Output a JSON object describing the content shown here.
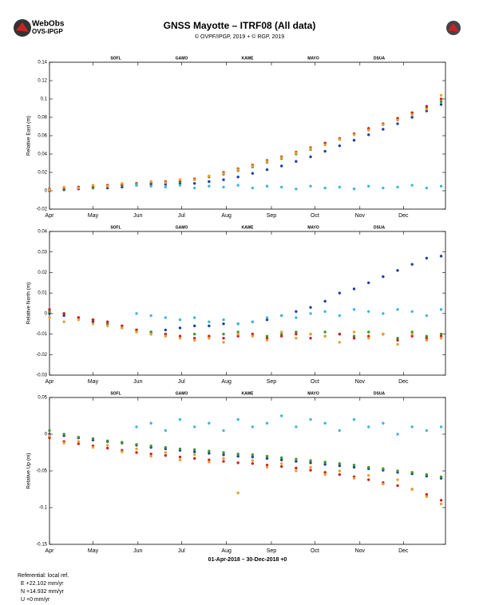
{
  "header": {
    "logo_title": "WebObs",
    "logo_subtitle": "OVS-IPGP",
    "title": "GNSS Mayotte – ITRF08 (All data)",
    "subtitle": "© OVPF/IPGP, 2019 + © RGP, 2019"
  },
  "referential": [
    "Referential: local ref.",
    "E +22.102 mm/yr",
    "N +14.932 mm/yr",
    "U +0 mm/yr"
  ],
  "chart_data": [
    {
      "type": "scatter",
      "ylabel": "Relative East (m)",
      "xlim": [
        0,
        273
      ],
      "ylim": [
        -0.02,
        0.14
      ],
      "xticks": [
        {
          "value": 0,
          "label": "Apr"
        },
        {
          "value": 30,
          "label": "May"
        },
        {
          "value": 61,
          "label": "Jun"
        },
        {
          "value": 91,
          "label": "Jul"
        },
        {
          "value": 122,
          "label": "Aug"
        },
        {
          "value": 153,
          "label": "Sep"
        },
        {
          "value": 183,
          "label": "Oct"
        },
        {
          "value": 214,
          "label": "Nov"
        },
        {
          "value": 244,
          "label": "Dec"
        }
      ],
      "yticks": [
        -0.02,
        0,
        0.02,
        0.04,
        0.06,
        0.08,
        0.1,
        0.12,
        0.14
      ],
      "x": [
        0,
        10,
        20,
        30,
        40,
        50,
        60,
        70,
        80,
        90,
        100,
        110,
        120,
        130,
        140,
        150,
        160,
        170,
        180,
        190,
        200,
        210,
        220,
        230,
        240,
        250,
        260,
        270
      ],
      "series": [
        {
          "name": "SOFL",
          "color": "#1f3f9f",
          "values": [
            0.0,
            0.001,
            0.002,
            0.003,
            0.003,
            0.004,
            0.006,
            0.007,
            0.007,
            0.008,
            0.008,
            0.01,
            0.012,
            0.015,
            0.019,
            0.023,
            0.027,
            0.032,
            0.037,
            0.043,
            0.049,
            0.055,
            0.061,
            0.067,
            0.073,
            0.08,
            0.087,
            0.094
          ]
        },
        {
          "name": "GAMO",
          "color": "#3a9a2a",
          "values": [
            0.001,
            0.002,
            0.004,
            0.003,
            0.005,
            0.006,
            0.008,
            0.009,
            0.009,
            0.01,
            0.012,
            0.015,
            0.018,
            0.022,
            0.026,
            0.031,
            0.035,
            0.04,
            0.045,
            0.051,
            0.056,
            0.062,
            0.067,
            0.072,
            0.078,
            0.084,
            0.09,
            0.097
          ]
        },
        {
          "name": "KAWE",
          "color": "#d02020",
          "values": [
            0.002,
            0.003,
            0.004,
            0.005,
            0.006,
            0.007,
            0.008,
            0.009,
            0.01,
            0.011,
            0.013,
            0.016,
            0.02,
            0.024,
            0.028,
            0.033,
            0.037,
            0.042,
            0.047,
            0.052,
            0.057,
            0.062,
            0.068,
            0.073,
            0.079,
            0.085,
            0.092,
            0.1
          ]
        },
        {
          "name": "MAYO",
          "color": "#e8a030",
          "values": [
            0.001,
            0.004,
            0.003,
            0.006,
            0.005,
            0.008,
            0.007,
            0.01,
            0.009,
            0.012,
            0.012,
            0.016,
            0.019,
            0.023,
            0.027,
            0.032,
            0.036,
            0.041,
            0.046,
            0.05,
            0.056,
            0.061,
            0.066,
            0.072,
            0.077,
            0.083,
            0.089,
            0.104
          ]
        },
        {
          "name": "DSUA",
          "color": "#40b8d0",
          "values": [
            null,
            null,
            null,
            null,
            null,
            null,
            0.006,
            0.005,
            0.004,
            0.006,
            0.003,
            0.005,
            0.004,
            0.006,
            0.003,
            0.005,
            0.004,
            0.002,
            0.005,
            0.003,
            0.004,
            0.002,
            0.005,
            0.003,
            0.004,
            0.006,
            0.003,
            0.005
          ]
        }
      ]
    },
    {
      "type": "scatter",
      "ylabel": "Relative North (m)",
      "xlim": [
        0,
        273
      ],
      "ylim": [
        -0.03,
        0.04
      ],
      "xticks": [
        {
          "value": 0,
          "label": "Apr"
        },
        {
          "value": 30,
          "label": "May"
        },
        {
          "value": 61,
          "label": "Jun"
        },
        {
          "value": 91,
          "label": "Jul"
        },
        {
          "value": 122,
          "label": "Aug"
        },
        {
          "value": 153,
          "label": "Sep"
        },
        {
          "value": 183,
          "label": "Oct"
        },
        {
          "value": 214,
          "label": "Nov"
        },
        {
          "value": 244,
          "label": "Dec"
        }
      ],
      "yticks": [
        -0.03,
        -0.02,
        -0.01,
        0,
        0.01,
        0.02,
        0.03,
        0.04
      ],
      "x": [
        0,
        10,
        20,
        30,
        40,
        50,
        60,
        70,
        80,
        90,
        100,
        110,
        120,
        130,
        140,
        150,
        160,
        170,
        180,
        190,
        200,
        210,
        220,
        230,
        240,
        250,
        260,
        270
      ],
      "series": [
        {
          "name": "SOFL",
          "color": "#1f3f9f",
          "values": [
            0.0,
            -0.001,
            -0.002,
            -0.004,
            -0.005,
            -0.007,
            -0.008,
            -0.009,
            -0.008,
            -0.007,
            -0.006,
            -0.006,
            -0.005,
            -0.005,
            -0.004,
            -0.003,
            -0.001,
            0.001,
            0.003,
            0.006,
            0.01,
            0.012,
            0.015,
            0.018,
            0.021,
            0.024,
            0.027,
            0.028
          ]
        },
        {
          "name": "GAMO",
          "color": "#3a9a2a",
          "values": [
            0.001,
            0.0,
            -0.002,
            -0.003,
            -0.005,
            -0.006,
            -0.008,
            -0.009,
            -0.01,
            -0.011,
            -0.01,
            -0.011,
            -0.01,
            -0.009,
            -0.01,
            -0.011,
            -0.01,
            -0.009,
            -0.01,
            -0.009,
            -0.01,
            -0.011,
            -0.009,
            -0.01,
            -0.012,
            -0.009,
            -0.011,
            -0.01
          ]
        },
        {
          "name": "KAWE",
          "color": "#d02020",
          "values": [
            0.002,
            0.0,
            -0.002,
            -0.003,
            -0.004,
            -0.006,
            -0.008,
            -0.01,
            -0.01,
            -0.011,
            -0.012,
            -0.011,
            -0.012,
            -0.011,
            -0.01,
            -0.012,
            -0.011,
            -0.01,
            -0.012,
            -0.011,
            -0.01,
            -0.012,
            -0.011,
            -0.01,
            -0.013,
            -0.011,
            -0.012,
            -0.011
          ]
        },
        {
          "name": "MAYO",
          "color": "#e8a030",
          "values": [
            -0.002,
            -0.004,
            -0.003,
            -0.005,
            -0.006,
            -0.007,
            -0.009,
            -0.01,
            -0.011,
            -0.012,
            -0.013,
            -0.012,
            -0.014,
            -0.01,
            -0.011,
            -0.013,
            -0.009,
            -0.012,
            -0.01,
            -0.011,
            -0.014,
            -0.009,
            -0.012,
            -0.01,
            -0.015,
            -0.01,
            -0.013,
            -0.012
          ]
        },
        {
          "name": "DSUA",
          "color": "#40b8d0",
          "values": [
            null,
            null,
            null,
            null,
            null,
            null,
            0.0,
            -0.001,
            -0.002,
            -0.003,
            -0.002,
            -0.004,
            -0.003,
            -0.005,
            -0.004,
            -0.002,
            -0.001,
            -0.002,
            0.0,
            0.001,
            -0.001,
            0.002,
            0.001,
            0.0,
            0.002,
            0.001,
            -0.001,
            0.002
          ]
        }
      ]
    },
    {
      "type": "scatter",
      "ylabel": "Relative Up (m)",
      "xlabel": "01-Apr-2018 – 30-Dec-2018 +0",
      "xlim": [
        0,
        273
      ],
      "ylim": [
        -0.15,
        0.05
      ],
      "xticks": [
        {
          "value": 0,
          "label": "Apr"
        },
        {
          "value": 30,
          "label": "May"
        },
        {
          "value": 61,
          "label": "Jun"
        },
        {
          "value": 91,
          "label": "Jul"
        },
        {
          "value": 122,
          "label": "Aug"
        },
        {
          "value": 153,
          "label": "Sep"
        },
        {
          "value": 183,
          "label": "Oct"
        },
        {
          "value": 214,
          "label": "Nov"
        },
        {
          "value": 244,
          "label": "Dec"
        }
      ],
      "yticks": [
        -0.15,
        -0.1,
        -0.05,
        0,
        0.05
      ],
      "x": [
        0,
        10,
        20,
        30,
        40,
        50,
        60,
        70,
        80,
        90,
        100,
        110,
        120,
        130,
        140,
        150,
        160,
        170,
        180,
        190,
        200,
        210,
        220,
        230,
        240,
        250,
        260,
        270
      ],
      "series": [
        {
          "name": "SOFL",
          "color": "#1f3f9f",
          "values": [
            0.0,
            -0.002,
            -0.005,
            -0.008,
            -0.01,
            -0.012,
            -0.015,
            -0.018,
            -0.02,
            -0.022,
            -0.024,
            -0.026,
            -0.028,
            -0.03,
            -0.031,
            -0.033,
            -0.035,
            -0.037,
            -0.039,
            -0.041,
            -0.043,
            -0.045,
            -0.047,
            -0.049,
            -0.052,
            -0.054,
            -0.057,
            -0.06
          ]
        },
        {
          "name": "GAMO",
          "color": "#3a9a2a",
          "values": [
            0.005,
            0.0,
            -0.004,
            -0.006,
            -0.009,
            -0.011,
            -0.014,
            -0.016,
            -0.018,
            -0.02,
            -0.021,
            -0.023,
            -0.025,
            -0.027,
            -0.028,
            -0.03,
            -0.032,
            -0.034,
            -0.036,
            -0.038,
            -0.04,
            -0.042,
            -0.045,
            -0.047,
            -0.05,
            -0.052,
            -0.055,
            -0.058
          ]
        },
        {
          "name": "KAWE",
          "color": "#d02020",
          "values": [
            -0.005,
            -0.01,
            -0.013,
            -0.016,
            -0.019,
            -0.022,
            -0.025,
            -0.027,
            -0.029,
            -0.031,
            -0.033,
            -0.035,
            -0.037,
            -0.039,
            -0.04,
            -0.042,
            -0.044,
            -0.046,
            -0.049,
            -0.052,
            -0.055,
            -0.058,
            -0.062,
            -0.066,
            -0.07,
            -0.075,
            -0.082,
            -0.09
          ]
        },
        {
          "name": "MAYO",
          "color": "#e8a030",
          "values": [
            -0.002,
            -0.012,
            -0.01,
            -0.018,
            -0.015,
            -0.024,
            -0.02,
            -0.03,
            -0.025,
            -0.035,
            -0.028,
            -0.038,
            -0.033,
            -0.08,
            -0.036,
            -0.045,
            -0.04,
            -0.05,
            -0.045,
            -0.055,
            -0.05,
            -0.06,
            -0.056,
            -0.068,
            -0.062,
            -0.075,
            -0.085,
            -0.095
          ]
        },
        {
          "name": "DSUA",
          "color": "#40b8d0",
          "values": [
            null,
            null,
            null,
            null,
            null,
            null,
            0.01,
            0.015,
            0.005,
            0.02,
            0.01,
            0.015,
            0.005,
            0.02,
            0.01,
            0.015,
            0.025,
            0.01,
            0.02,
            0.015,
            0.005,
            0.02,
            0.01,
            0.015,
            0.0,
            0.01,
            0.005,
            0.01
          ]
        }
      ]
    }
  ]
}
